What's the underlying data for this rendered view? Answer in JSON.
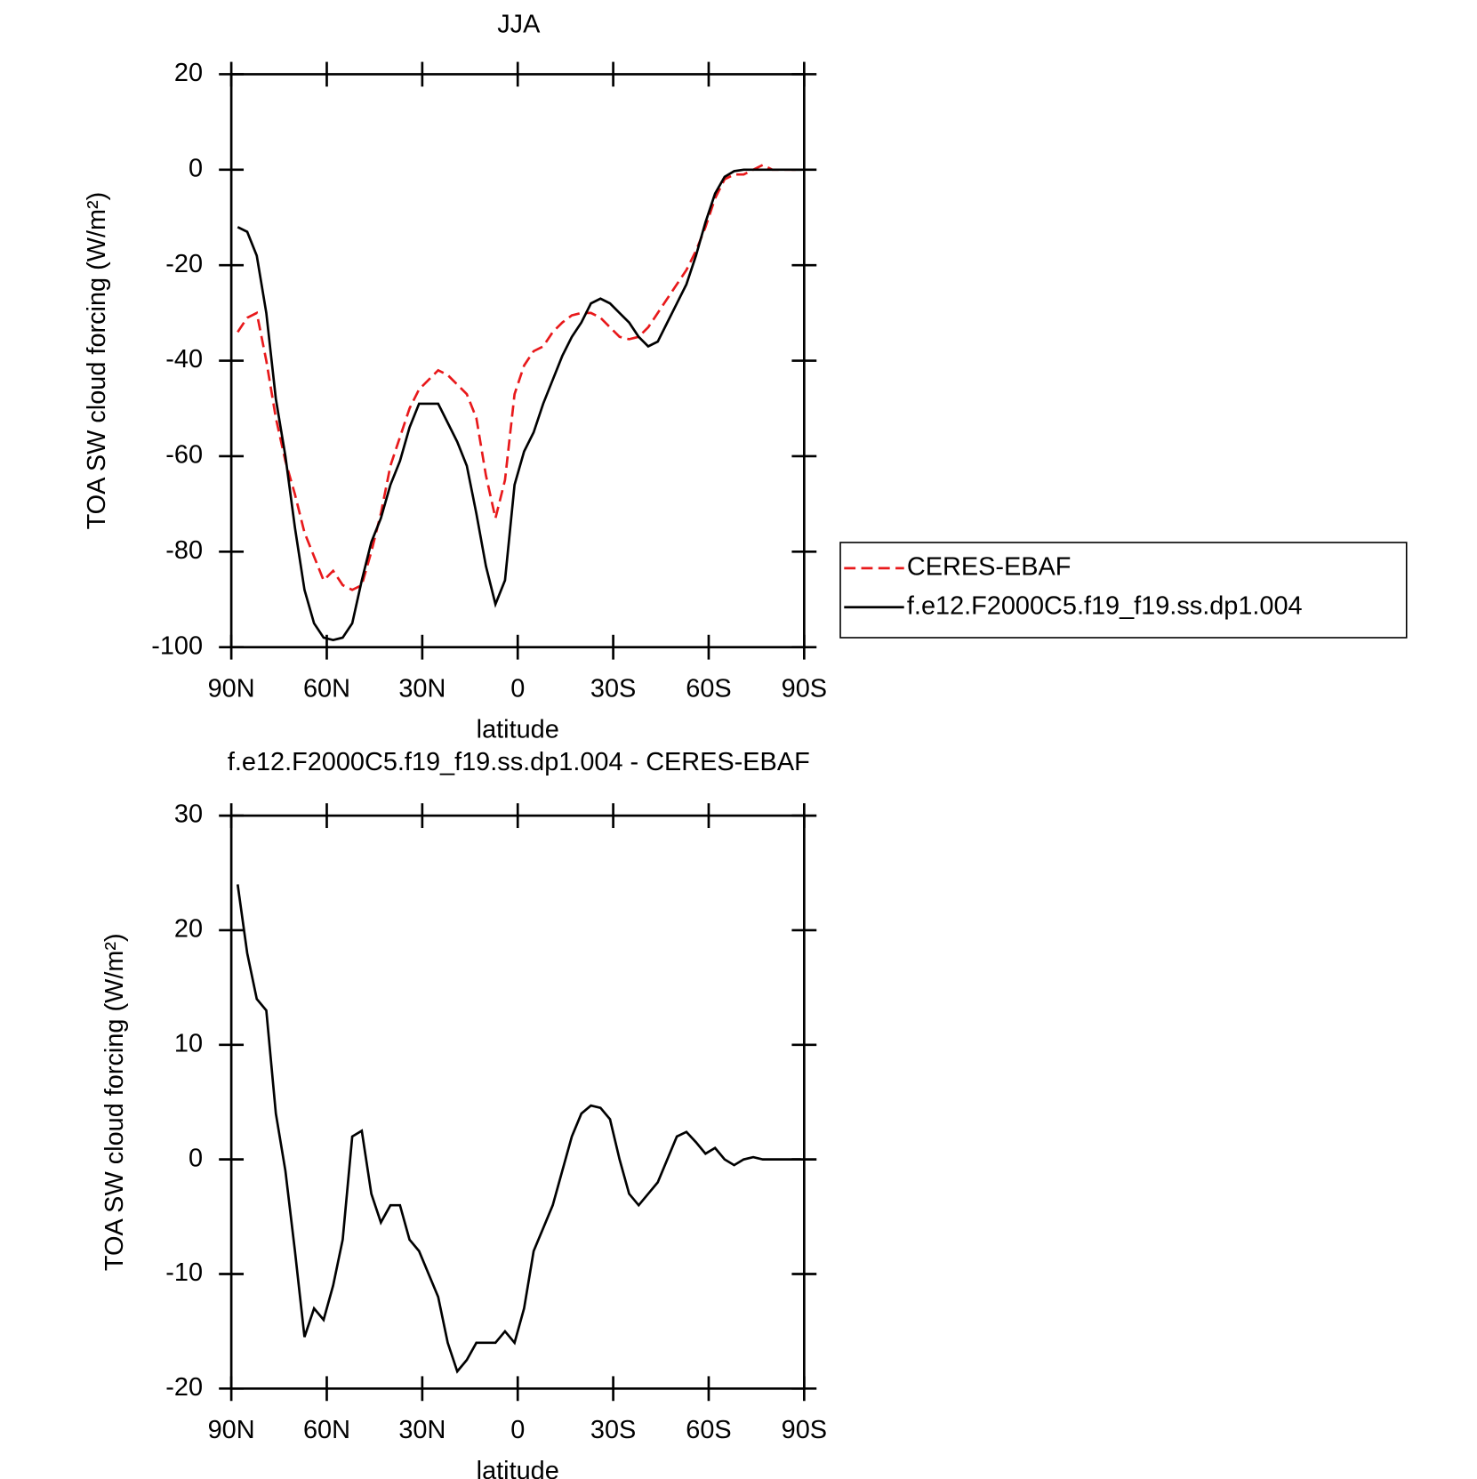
{
  "chart_data": [
    {
      "type": "line",
      "title": "JJA",
      "ylabel": "TOA SW cloud forcing (W/m²)",
      "xlabel": "latitude",
      "x": [
        88,
        85,
        82,
        79,
        76,
        73,
        70,
        67,
        64,
        61,
        58,
        55,
        52,
        49,
        46,
        43,
        40,
        37,
        34,
        31,
        28,
        25,
        22,
        19,
        16,
        13,
        10,
        7,
        4,
        1,
        -2,
        -5,
        -8,
        -11,
        -14,
        -17,
        -20,
        -23,
        -26,
        -29,
        -32,
        -35,
        -38,
        -41,
        -44,
        -47,
        -50,
        -53,
        -56,
        -59,
        -62,
        -65,
        -68,
        -71,
        -74,
        -77,
        -80,
        -83,
        -86,
        -89
      ],
      "xlim": [
        90,
        -90
      ],
      "xticks": [
        {
          "value": 90,
          "label": "90N"
        },
        {
          "value": 60,
          "label": "60N"
        },
        {
          "value": 30,
          "label": "30N"
        },
        0,
        {
          "value": -30,
          "label": "30S"
        },
        {
          "value": -60,
          "label": "60S"
        },
        {
          "value": -90,
          "label": "90S"
        }
      ],
      "ylim": [
        -100,
        20
      ],
      "yticks": [
        -100,
        -80,
        -60,
        -40,
        -20,
        0,
        20
      ],
      "legend": "right",
      "series": [
        {
          "name": "CERES-EBAF",
          "color": "#e8191b",
          "linestyle": "dashed",
          "values": [
            -34,
            -31,
            -30,
            -40,
            -52,
            -61,
            -68,
            -76,
            -81,
            -86,
            -84,
            -87,
            -88,
            -87,
            -80,
            -72,
            -62,
            -56,
            -50,
            -46,
            -44,
            -42,
            -43,
            -45,
            -47,
            -52,
            -64,
            -73,
            -65,
            -47,
            -41,
            -38,
            -37,
            -34,
            -32,
            -30.5,
            -30,
            -30,
            -31,
            -33,
            -35,
            -35.5,
            -35,
            -33,
            -30,
            -27,
            -24,
            -21,
            -17,
            -12,
            -6,
            -2,
            -1,
            -1,
            0,
            1,
            0,
            0,
            0,
            0
          ]
        },
        {
          "name": "f.e12.F2000C5.f19_f19.ss.dp1.004",
          "color": "#000000",
          "linestyle": "solid",
          "values": [
            -12,
            -13,
            -18,
            -30,
            -48,
            -60,
            -75,
            -88,
            -95,
            -98,
            -98.5,
            -98,
            -95,
            -86,
            -78,
            -73,
            -66,
            -61,
            -54,
            -49,
            -49,
            -49,
            -53,
            -57,
            -62,
            -72,
            -83,
            -91,
            -86,
            -66,
            -59,
            -55,
            -49,
            -44,
            -39,
            -35,
            -32,
            -28,
            -27,
            -28,
            -30,
            -32,
            -35,
            -37,
            -36,
            -32,
            -28,
            -24,
            -18,
            -11,
            -5,
            -1.5,
            -0.3,
            0,
            0,
            0,
            0,
            0,
            0,
            0
          ]
        }
      ]
    },
    {
      "type": "line",
      "title": "f.e12.F2000C5.f19_f19.ss.dp1.004 - CERES-EBAF",
      "ylabel": "TOA SW cloud forcing (W/m²)",
      "xlabel": "latitude",
      "x": [
        88,
        85,
        82,
        79,
        76,
        73,
        70,
        67,
        64,
        61,
        58,
        55,
        52,
        49,
        46,
        43,
        40,
        37,
        34,
        31,
        28,
        25,
        22,
        19,
        16,
        13,
        10,
        7,
        4,
        1,
        -2,
        -5,
        -8,
        -11,
        -14,
        -17,
        -20,
        -23,
        -26,
        -29,
        -32,
        -35,
        -38,
        -41,
        -44,
        -47,
        -50,
        -53,
        -56,
        -59,
        -62,
        -65,
        -68,
        -71,
        -74,
        -77,
        -80,
        -83,
        -86,
        -89
      ],
      "xlim": [
        90,
        -90
      ],
      "xticks": [
        {
          "value": 90,
          "label": "90N"
        },
        {
          "value": 60,
          "label": "60N"
        },
        {
          "value": 30,
          "label": "30N"
        },
        0,
        {
          "value": -30,
          "label": "30S"
        },
        {
          "value": -60,
          "label": "60S"
        },
        {
          "value": -90,
          "label": "90S"
        }
      ],
      "ylim": [
        -20,
        30
      ],
      "yticks": [
        -20,
        -10,
        0,
        10,
        20,
        30
      ],
      "color": "#000000",
      "values": [
        24,
        18,
        14,
        13,
        4,
        -1,
        -8,
        -15.5,
        -13,
        -14,
        -11,
        -7,
        2,
        2.5,
        -3,
        -5.5,
        -4,
        -4,
        -7,
        -8,
        -10,
        -12,
        -16,
        -18.5,
        -17.5,
        -16,
        -16,
        -16,
        -15,
        -16,
        -13,
        -8,
        -6,
        -4,
        -1,
        2,
        4,
        4.7,
        4.5,
        3.5,
        0,
        -3,
        -4,
        -3,
        -2,
        0,
        2,
        2.4,
        1.5,
        0.5,
        1,
        0,
        -0.5,
        0,
        0.2,
        0,
        0,
        0,
        0,
        0
      ]
    }
  ]
}
